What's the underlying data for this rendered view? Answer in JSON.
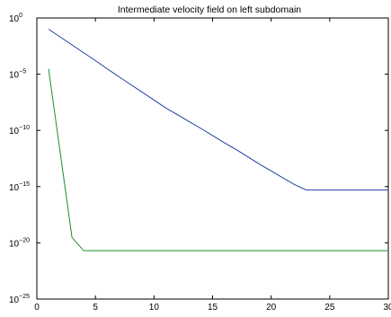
{
  "chart_data": {
    "type": "line",
    "title": "Intermediate velocity field on left subdomain",
    "xlabel": "",
    "ylabel": "",
    "xlim": [
      0,
      30
    ],
    "ylim": [
      1e-25,
      1
    ],
    "yscale": "log",
    "grid": false,
    "x_ticks": [
      0,
      5,
      10,
      15,
      20,
      25,
      30
    ],
    "x_tick_labels": [
      "0",
      "5",
      "10",
      "15",
      "20",
      "25",
      "30"
    ],
    "y_ticks": [
      1,
      1e-05,
      1e-10,
      1e-15,
      1e-20,
      1e-25
    ],
    "y_tick_labels": [
      {
        "base": "10",
        "exp": "0"
      },
      {
        "base": "10",
        "exp": "−5"
      },
      {
        "base": "10",
        "exp": "−10"
      },
      {
        "base": "10",
        "exp": "−15"
      },
      {
        "base": "10",
        "exp": "−20"
      },
      {
        "base": "10",
        "exp": "−25"
      }
    ],
    "series": [
      {
        "color": "#1f3f9f",
        "x": [
          1,
          2,
          3,
          4,
          5,
          6,
          7,
          8,
          9,
          10,
          11,
          12,
          13,
          14,
          15,
          16,
          17,
          18,
          19,
          20,
          21,
          22,
          23,
          24,
          25,
          26,
          27,
          28,
          29,
          30
        ],
        "y": [
          0.1,
          0.02,
          0.004,
          0.0008,
          0.00016,
          3e-05,
          6e-06,
          1.2e-06,
          2.5e-07,
          5e-08,
          1e-08,
          2.5e-09,
          6e-10,
          1.5e-10,
          3.5e-11,
          8e-12,
          2e-12,
          4.5e-13,
          1e-13,
          2.5e-14,
          6e-15,
          1.5e-15,
          5e-16,
          5e-16,
          5e-16,
          5e-16,
          5e-16,
          5e-16,
          5e-16,
          5e-16
        ]
      },
      {
        "color": "#1a8f2a",
        "x": [
          1,
          3,
          4,
          5,
          10,
          15,
          20,
          25,
          30
        ],
        "y": [
          3e-05,
          3e-20,
          2e-21,
          2e-21,
          2e-21,
          2e-21,
          2e-21,
          2e-21,
          2e-21
        ]
      }
    ]
  }
}
